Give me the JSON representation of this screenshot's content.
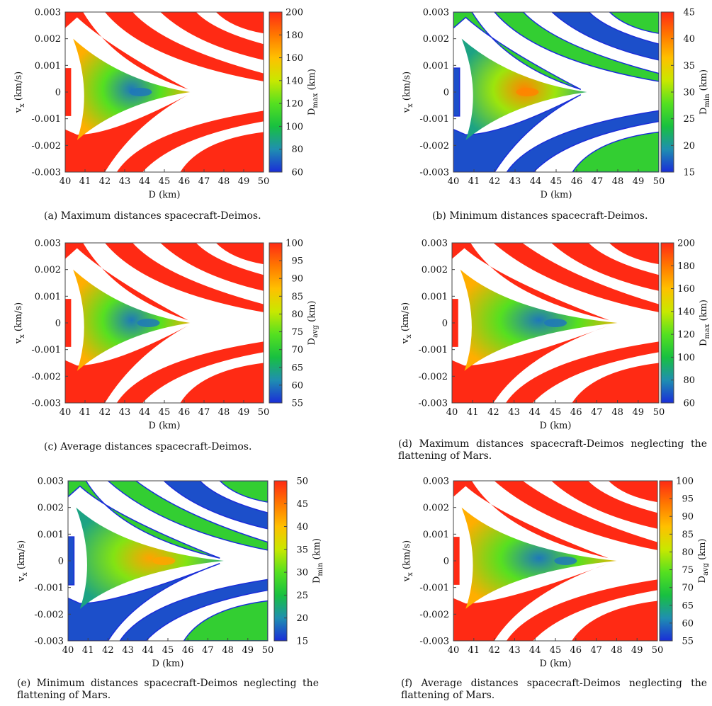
{
  "colors": {
    "palette": [
      "#1a2dd8",
      "#1f8fb0",
      "#18c040",
      "#55e020",
      "#c8e800",
      "#ffc000",
      "#ff7800",
      "#ff2a14"
    ],
    "plot_background": "#ffffff",
    "axis": "#444444"
  },
  "chart_data": [
    {
      "id": "a",
      "type": "heatmap",
      "caption": "(a) Maximum distances spacecraft-Deimos.",
      "xlabel": "D (km)",
      "ylabel": "v",
      "ylabel_sub": "x",
      "ylabel_unit": " (km/s)",
      "x_ticks": [
        "40",
        "41",
        "42",
        "43",
        "44",
        "45",
        "46",
        "47",
        "48",
        "49",
        "50"
      ],
      "y_ticks": [
        "-0.003",
        "-0.002",
        "-0.001",
        "0",
        "0.001",
        "0.002",
        "0.003"
      ],
      "xlim": [
        40,
        50
      ],
      "ylim": [
        -0.003,
        0.003
      ],
      "colorbar_label": "D",
      "colorbar_sub": "max",
      "colorbar_unit": " (km)",
      "colorbar_ticks": [
        "60",
        "80",
        "100",
        "120",
        "140",
        "160",
        "180",
        "200"
      ],
      "clim": [
        60,
        200
      ],
      "stable_region": {
        "tip_D": 46.3,
        "center_D": 43.8,
        "center_value": 75
      },
      "flattening_neglected": false
    },
    {
      "id": "b",
      "type": "heatmap",
      "caption": "(b) Minimum distances spacecraft-Deimos.",
      "xlabel": "D (km)",
      "ylabel": "v",
      "ylabel_sub": "x",
      "ylabel_unit": " (km/s)",
      "x_ticks": [
        "40",
        "41",
        "42",
        "43",
        "44",
        "45",
        "46",
        "47",
        "48",
        "49",
        "50"
      ],
      "y_ticks": [
        "-0.003",
        "-0.002",
        "-0.001",
        "0",
        "0.001",
        "0.002",
        "0.003"
      ],
      "xlim": [
        40,
        50
      ],
      "ylim": [
        -0.003,
        0.003
      ],
      "colorbar_label": "D",
      "colorbar_sub": "min",
      "colorbar_unit": " (km)",
      "colorbar_ticks": [
        "15",
        "20",
        "25",
        "30",
        "35",
        "40",
        "45"
      ],
      "clim": [
        15,
        45
      ],
      "stable_region": {
        "tip_D": 46.5,
        "center_D": 43.6,
        "center_value": 40
      },
      "flattening_neglected": false
    },
    {
      "id": "c",
      "type": "heatmap",
      "caption": "(c) Average distances spacecraft-Deimos.",
      "xlabel": "D (km)",
      "ylabel": "v",
      "ylabel_sub": "x",
      "ylabel_unit": " (km/s)",
      "x_ticks": [
        "40",
        "41",
        "42",
        "43",
        "44",
        "45",
        "46",
        "47",
        "48",
        "49",
        "50"
      ],
      "y_ticks": [
        "-0.003",
        "-0.002",
        "-0.001",
        "0",
        "0.001",
        "0.002",
        "0.003"
      ],
      "xlim": [
        40,
        50
      ],
      "ylim": [
        -0.003,
        0.003
      ],
      "colorbar_label": "D",
      "colorbar_sub": "avg",
      "colorbar_unit": " (km)",
      "colorbar_ticks": [
        "55",
        "60",
        "65",
        "70",
        "75",
        "80",
        "85",
        "90",
        "95",
        "100"
      ],
      "clim": [
        55,
        100
      ],
      "stable_region": {
        "tip_D": 46.3,
        "center_D": 44.2,
        "center_value": 60
      },
      "flattening_neglected": false
    },
    {
      "id": "d",
      "type": "heatmap",
      "caption": "(d) Maximum distances spacecraft-Deimos neglecting the flattening of Mars.",
      "xlabel": "D (km)",
      "ylabel": "v",
      "ylabel_sub": "x",
      "ylabel_unit": " (km/s)",
      "x_ticks": [
        "40",
        "41",
        "42",
        "43",
        "44",
        "45",
        "46",
        "47",
        "48",
        "49",
        "50"
      ],
      "y_ticks": [
        "-0.003",
        "-0.002",
        "-0.001",
        "0",
        "0.001",
        "0.002",
        "0.003"
      ],
      "xlim": [
        40,
        50
      ],
      "ylim": [
        -0.003,
        0.003
      ],
      "colorbar_label": "D",
      "colorbar_sub": "max",
      "colorbar_unit": " (km)",
      "colorbar_ticks": [
        "60",
        "80",
        "100",
        "120",
        "140",
        "160",
        "180",
        "200"
      ],
      "clim": [
        60,
        200
      ],
      "stable_region": {
        "tip_D": 48.0,
        "center_D": 45.0,
        "center_value": 75
      },
      "flattening_neglected": true
    },
    {
      "id": "e",
      "type": "heatmap",
      "caption": "(e) Minimum distances spacecraft-Deimos neglecting the flattening of Mars.",
      "xlabel": "D (km)",
      "ylabel": "v",
      "ylabel_sub": "x",
      "ylabel_unit": " (km/s)",
      "x_ticks": [
        "40",
        "41",
        "42",
        "43",
        "44",
        "45",
        "46",
        "47",
        "48",
        "49",
        "50"
      ],
      "y_ticks": [
        "-0.003",
        "-0.002",
        "-0.001",
        "0",
        "0.001",
        "0.002",
        "0.003"
      ],
      "xlim": [
        40,
        50
      ],
      "ylim": [
        -0.003,
        0.003
      ],
      "colorbar_label": "D",
      "colorbar_sub": "min",
      "colorbar_unit": " (km)",
      "colorbar_ticks": [
        "15",
        "20",
        "25",
        "30",
        "35",
        "40",
        "45",
        "50"
      ],
      "clim": [
        15,
        50
      ],
      "stable_region": {
        "tip_D": 47.8,
        "center_D": 44.8,
        "center_value": 42
      },
      "flattening_neglected": true
    },
    {
      "id": "f",
      "type": "heatmap",
      "caption": "(f) Average distances spacecraft-Deimos neglecting the flattening of Mars.",
      "xlabel": "D (km)",
      "ylabel": "v",
      "ylabel_sub": "x",
      "ylabel_unit": " (km/s)",
      "x_ticks": [
        "40",
        "41",
        "42",
        "43",
        "44",
        "45",
        "46",
        "47",
        "48",
        "49",
        "50"
      ],
      "y_ticks": [
        "-0.003",
        "-0.002",
        "-0.001",
        "0",
        "0.001",
        "0.002",
        "0.003"
      ],
      "xlim": [
        40,
        50
      ],
      "ylim": [
        -0.003,
        0.003
      ],
      "colorbar_label": "D",
      "colorbar_sub": "avg",
      "colorbar_unit": " (km)",
      "colorbar_ticks": [
        "55",
        "60",
        "65",
        "70",
        "75",
        "80",
        "85",
        "90",
        "95",
        "100"
      ],
      "clim": [
        55,
        100
      ],
      "stable_region": {
        "tip_D": 48.0,
        "center_D": 45.5,
        "center_value": 60
      },
      "flattening_neglected": true
    }
  ]
}
